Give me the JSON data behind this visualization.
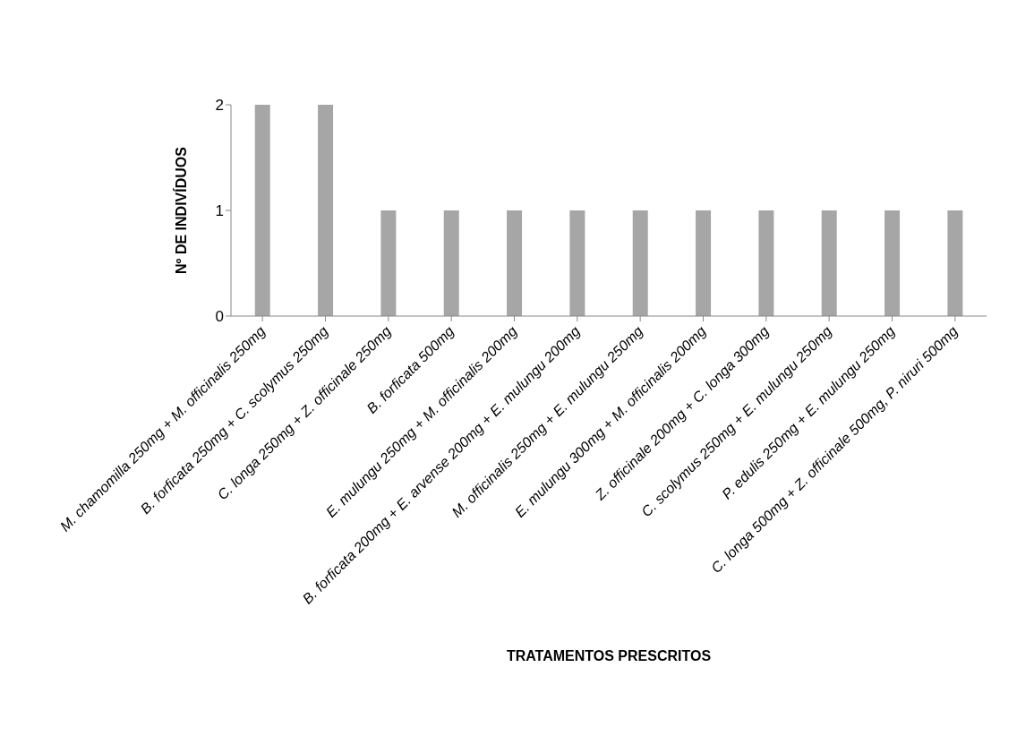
{
  "chart_data": {
    "type": "bar",
    "xlabel": "TRATAMENTOS PRESCRITOS",
    "ylabel": "Nº DE INDIVÍDUOS",
    "categories": [
      "M. chamomilla 250mg + M. officinalis 250mg",
      "B. forficata 250mg + C. scolymus 250mg",
      "C. longa 250mg + Z. officinale 250mg",
      "B. forficata 500mg",
      "E. mulungu 250mg + M. officinalis 200mg",
      "B. forficata 200mg + E. arvense 200mg + E. mulungu 200mg",
      "M. officinalis 250mg + E. mulungu 250mg",
      "E. mulungu 300mg + M. officinalis 200mg",
      "Z. officinale 200mg + C. longa 300mg",
      "C. scolymus 250mg + E. mulungu 250mg",
      "P. edulis 250mg + E. mulungu 250mg",
      "C. longa 500mg + Z. officinale 500mg, P. niruri 500mg"
    ],
    "values": [
      2,
      2,
      1,
      1,
      1,
      1,
      1,
      1,
      1,
      1,
      1,
      1
    ],
    "color": "#a6a6a6",
    "ylim": [
      0,
      2
    ],
    "yticks": [
      0,
      1,
      2
    ],
    "grid": false
  }
}
